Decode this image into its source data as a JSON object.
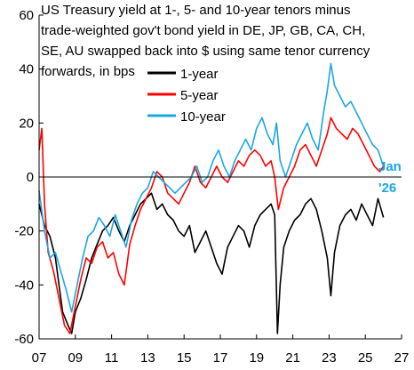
{
  "chart_data": {
    "type": "line",
    "title_lines": [
      "US Treasury yield at 1-, 5- and 10-year tenors minus",
      "trade-weighted gov't bond yield in DE, JP, GB, CA, CH,",
      "SE, AU swapped back into $ using same tenor currency",
      "forwards, in bps"
    ],
    "xlabel": "",
    "ylabel": "",
    "xlim": [
      2007,
      2027
    ],
    "ylim": [
      -60,
      60
    ],
    "x_ticks": [
      "07",
      "09",
      "11",
      "13",
      "15",
      "17",
      "19",
      "21",
      "23",
      "25",
      "27"
    ],
    "y_ticks": [
      "60",
      "40",
      "20",
      "0",
      "-20",
      "-40",
      "-60"
    ],
    "grid": false,
    "legend_position": "top-center",
    "annotation": {
      "lines": [
        "Jan",
        "'26"
      ],
      "color": "#1aa7e0"
    },
    "series": [
      {
        "name": "1-year",
        "color": "#000000",
        "x": [
          2007.0,
          2007.3,
          2007.6,
          2007.9,
          2008.1,
          2008.3,
          2008.6,
          2008.8,
          2009.0,
          2009.3,
          2009.6,
          2009.9,
          2010.2,
          2010.5,
          2010.8,
          2011.1,
          2011.4,
          2011.7,
          2012.0,
          2012.3,
          2012.6,
          2012.9,
          2013.2,
          2013.5,
          2013.8,
          2014.1,
          2014.4,
          2014.7,
          2015.0,
          2015.3,
          2015.6,
          2015.9,
          2016.2,
          2016.5,
          2016.8,
          2017.1,
          2017.4,
          2017.7,
          2018.0,
          2018.3,
          2018.6,
          2018.9,
          2019.2,
          2019.5,
          2019.8,
          2020.0,
          2020.15,
          2020.3,
          2020.5,
          2020.8,
          2021.1,
          2021.4,
          2021.7,
          2022.0,
          2022.3,
          2022.6,
          2022.9,
          2023.1,
          2023.3,
          2023.6,
          2023.9,
          2024.2,
          2024.5,
          2024.8,
          2025.1,
          2025.4,
          2025.7,
          2026.0
        ],
        "values": [
          -10,
          -18,
          -22,
          -30,
          -40,
          -50,
          -55,
          -58,
          -50,
          -45,
          -38,
          -30,
          -25,
          -20,
          -18,
          -15,
          -20,
          -24,
          -18,
          -14,
          -10,
          -8,
          -6,
          -12,
          -10,
          -14,
          -16,
          -20,
          -22,
          -18,
          -28,
          -24,
          -20,
          -26,
          -32,
          -36,
          -26,
          -22,
          -18,
          -20,
          -26,
          -18,
          -14,
          -12,
          -10,
          -14,
          -58,
          -40,
          -26,
          -20,
          -16,
          -14,
          -10,
          -8,
          -12,
          -20,
          -30,
          -44,
          -28,
          -18,
          -14,
          -12,
          -16,
          -10,
          -14,
          -18,
          -8,
          -15
        ]
      },
      {
        "name": "5-year",
        "color": "#ff0000",
        "x": [
          2007.0,
          2007.15,
          2007.3,
          2007.5,
          2007.8,
          2008.1,
          2008.4,
          2008.7,
          2009.0,
          2009.3,
          2009.6,
          2009.9,
          2010.2,
          2010.5,
          2010.8,
          2011.1,
          2011.4,
          2011.7,
          2012.0,
          2012.3,
          2012.6,
          2012.9,
          2013.2,
          2013.5,
          2013.8,
          2014.1,
          2014.4,
          2014.7,
          2015.0,
          2015.3,
          2015.6,
          2015.9,
          2016.2,
          2016.5,
          2016.8,
          2017.1,
          2017.4,
          2017.7,
          2018.0,
          2018.3,
          2018.6,
          2018.9,
          2019.2,
          2019.5,
          2019.8,
          2020.0,
          2020.2,
          2020.5,
          2020.8,
          2021.1,
          2021.4,
          2021.7,
          2022.0,
          2022.3,
          2022.6,
          2022.9,
          2023.1,
          2023.4,
          2023.7,
          2024.0,
          2024.3,
          2024.6,
          2024.9,
          2025.2,
          2025.5,
          2025.8,
          2026.0
        ],
        "values": [
          10,
          18,
          -10,
          -28,
          -35,
          -45,
          -55,
          -58,
          -48,
          -38,
          -30,
          -32,
          -26,
          -24,
          -30,
          -28,
          -36,
          -40,
          -25,
          -18,
          -12,
          -8,
          -4,
          2,
          0,
          -6,
          -8,
          -10,
          -6,
          -2,
          4,
          -2,
          -4,
          0,
          4,
          0,
          -2,
          2,
          6,
          4,
          8,
          10,
          8,
          4,
          6,
          0,
          -12,
          -4,
          0,
          4,
          10,
          12,
          8,
          4,
          10,
          16,
          22,
          18,
          16,
          14,
          18,
          16,
          12,
          8,
          4,
          2,
          4
        ]
      },
      {
        "name": "10-year",
        "color": "#1aa7e0",
        "x": [
          2007.0,
          2007.3,
          2007.6,
          2007.9,
          2008.2,
          2008.5,
          2008.8,
          2009.1,
          2009.4,
          2009.7,
          2010.0,
          2010.3,
          2010.6,
          2010.9,
          2011.2,
          2011.5,
          2011.8,
          2012.1,
          2012.4,
          2012.7,
          2013.0,
          2013.3,
          2013.6,
          2013.9,
          2014.2,
          2014.5,
          2014.8,
          2015.1,
          2015.4,
          2015.7,
          2016.0,
          2016.3,
          2016.6,
          2016.9,
          2017.2,
          2017.5,
          2017.8,
          2018.1,
          2018.4,
          2018.7,
          2019.0,
          2019.3,
          2019.6,
          2019.9,
          2020.1,
          2020.3,
          2020.6,
          2020.9,
          2021.2,
          2021.5,
          2021.8,
          2022.1,
          2022.4,
          2022.7,
          2022.9,
          2023.1,
          2023.3,
          2023.6,
          2023.9,
          2024.2,
          2024.5,
          2024.8,
          2025.1,
          2025.4,
          2025.7,
          2026.0
        ],
        "values": [
          -5,
          -20,
          -30,
          -28,
          -35,
          -42,
          -50,
          -40,
          -30,
          -22,
          -20,
          -15,
          -18,
          -22,
          -14,
          -20,
          -26,
          -16,
          -10,
          -6,
          -4,
          2,
          0,
          -2,
          -4,
          -6,
          -4,
          -2,
          0,
          4,
          -2,
          0,
          6,
          10,
          4,
          0,
          6,
          10,
          14,
          10,
          18,
          22,
          16,
          12,
          20,
          6,
          0,
          6,
          12,
          16,
          20,
          14,
          10,
          24,
          32,
          42,
          34,
          30,
          26,
          28,
          24,
          20,
          16,
          12,
          10,
          4
        ]
      }
    ]
  }
}
